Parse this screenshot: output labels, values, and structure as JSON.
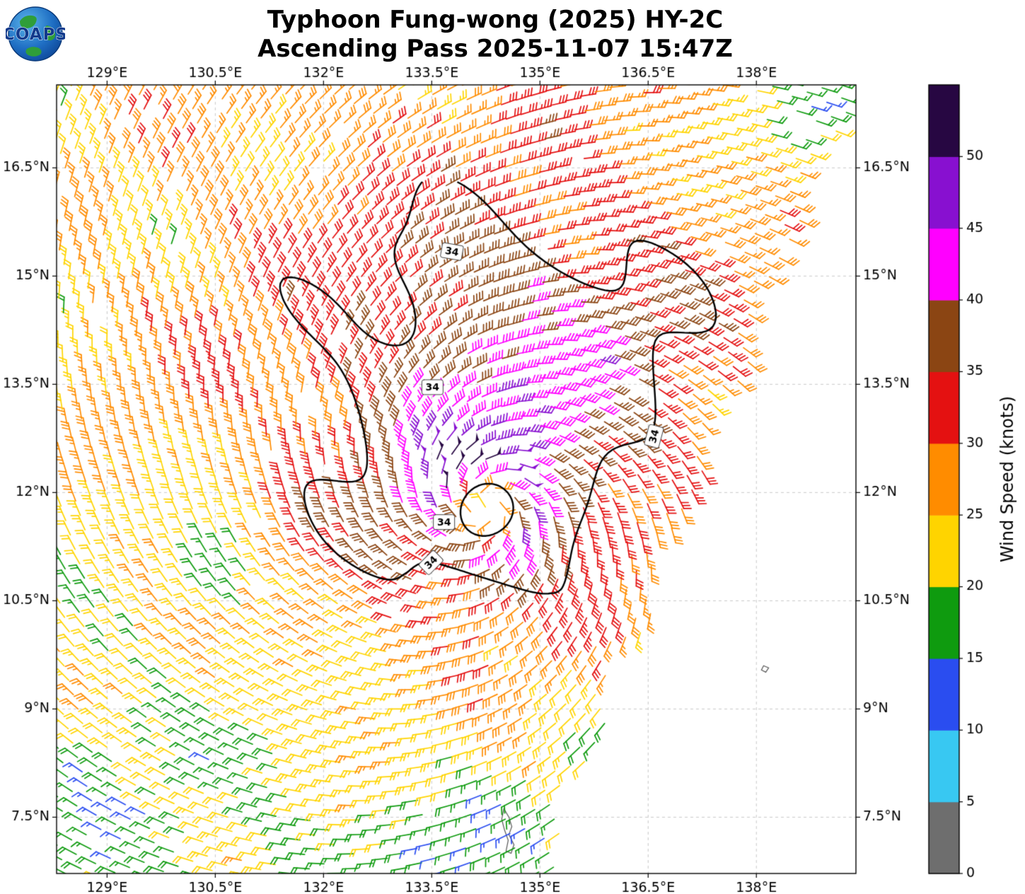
{
  "branding": {
    "logo_text": "COAPS"
  },
  "chart_data": {
    "type": "wind_barb_map",
    "title": "Typhoon Fung-wong (2025) HY-2C",
    "subtitle": "Ascending Pass 2025-11-07 15:47Z",
    "storm": {
      "name": "Fung-wong",
      "year": "2025",
      "satellite": "HY-2C",
      "pass": "Ascending",
      "time": "2025-11-07 15:47Z",
      "center_lon": 134.25,
      "center_lat": 11.8,
      "max_wind_knots": 46
    },
    "grid": true,
    "x_axis": {
      "tick_values": [
        129,
        130.5,
        132,
        133.5,
        135,
        136.5,
        138
      ],
      "tick_labels": [
        "129°E",
        "130.5°E",
        "132°E",
        "133.5°E",
        "135°E",
        "136.5°E",
        "138°E"
      ],
      "range": [
        128.3,
        139.38
      ]
    },
    "y_axis": {
      "tick_values": [
        7.5,
        9,
        10.5,
        12,
        13.5,
        15,
        16.5
      ],
      "tick_labels": [
        "7.5°N",
        "9°N",
        "10.5°N",
        "12°N",
        "13.5°N",
        "15°N",
        "16.5°N"
      ],
      "range": [
        6.72,
        17.65
      ]
    },
    "colorbar": {
      "label": "Wind Speed (knots)",
      "tick_values": [
        0,
        5,
        10,
        15,
        20,
        25,
        30,
        35,
        40,
        45,
        50
      ],
      "levels": [
        0,
        5,
        10,
        15,
        20,
        25,
        30,
        35,
        40,
        45,
        50,
        55
      ],
      "colors": [
        "#6e6e6e",
        "#38c8f2",
        "#2a4df0",
        "#0f9b0f",
        "#ffd400",
        "#ff8c00",
        "#e41111",
        "#8b4513",
        "#ff00ff",
        "#8810d0",
        "#270742"
      ],
      "orientation": "vertical-right"
    },
    "contour": {
      "level": 34,
      "text": "34",
      "labels": [
        {
          "lon": 133.78,
          "lat": 15.34,
          "rot": -10
        },
        {
          "lon": 133.51,
          "lat": 13.46,
          "rot": 0
        },
        {
          "lon": 136.58,
          "lat": 12.78,
          "rot": 75
        },
        {
          "lon": 133.67,
          "lat": 11.59,
          "rot": 0
        },
        {
          "lon": 133.49,
          "lat": 11.03,
          "rot": 45
        }
      ]
    },
    "wind_field_model": {
      "center": [
        134.25,
        11.8
      ],
      "v_eye": 18,
      "vmax": 46,
      "rmax": 0.7,
      "decay": 0.33,
      "asym_amp": 5,
      "asym_dir_deg": 95,
      "inflow_deg": 22,
      "noise_amp": 5,
      "wiggle": [
        [
          2.0,
          2.3,
          2.1,
          0.5
        ],
        [
          1.8,
          1.15,
          -1.7,
          1.0
        ],
        [
          1.2,
          3.4,
          2.9,
          2.0
        ]
      ],
      "anomalies": [
        {
          "lon": 130.6,
          "lat": 10.9,
          "amp": -9,
          "sigma": 0.45
        },
        {
          "lon": 133.6,
          "lat": 7.1,
          "amp": -5.5,
          "sigma": 0.5
        },
        {
          "lon": 138.6,
          "lat": 17.2,
          "amp": -7,
          "sigma": 0.5
        },
        {
          "lon": 134.6,
          "lat": 14.6,
          "amp": 5,
          "sigma": 1.2
        },
        {
          "lon": 136.3,
          "lat": 14.2,
          "amp": 4,
          "sigma": 0.8
        }
      ]
    },
    "swath": {
      "right_edge_points": [
        [
          135.35,
          7.55
        ],
        [
          138.8,
          16.4
        ]
      ],
      "row_tilt_deg": 18,
      "barb_spacing_deg": 0.215,
      "row_spacing_deg": 0.21,
      "grid_center": [
        133.5,
        12
      ],
      "row_curvature": -0.0025
    },
    "islands": [
      {
        "points": [
          [
            134.5,
            7.62
          ],
          [
            134.57,
            7.5
          ],
          [
            134.61,
            7.37
          ],
          [
            134.57,
            7.26
          ],
          [
            134.64,
            7.12
          ],
          [
            134.6,
            7.0
          ],
          [
            134.53,
            7.03
          ],
          [
            134.56,
            7.18
          ],
          [
            134.51,
            7.32
          ],
          [
            134.47,
            7.47
          ]
        ]
      },
      {
        "points": [
          [
            138.1,
            9.6
          ],
          [
            138.17,
            9.57
          ],
          [
            138.13,
            9.51
          ],
          [
            138.07,
            9.54
          ]
        ]
      }
    ]
  }
}
